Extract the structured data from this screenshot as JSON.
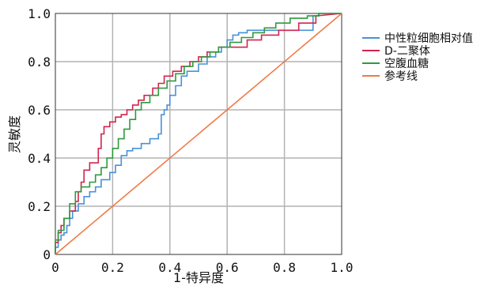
{
  "chart_data": {
    "type": "line",
    "title": "",
    "xlabel": "1-特异度",
    "ylabel": "灵敏度",
    "xlim": [
      0,
      1
    ],
    "ylim": [
      0,
      1
    ],
    "xticks": [
      "0",
      "0.2",
      "0.4",
      "0.6",
      "0.8",
      "1.0"
    ],
    "yticks": [
      "0",
      "0.2",
      "0.4",
      "0.6",
      "0.8",
      "1.0"
    ],
    "grid": true,
    "legend_position": "right",
    "series": [
      {
        "name": "中性粒细胞相对值",
        "color": "#4a90d9",
        "x": [
          0,
          0,
          0.01,
          0.01,
          0.02,
          0.02,
          0.03,
          0.03,
          0.04,
          0.04,
          0.05,
          0.05,
          0.06,
          0.06,
          0.08,
          0.08,
          0.1,
          0.1,
          0.12,
          0.12,
          0.14,
          0.14,
          0.16,
          0.16,
          0.19,
          0.19,
          0.21,
          0.21,
          0.23,
          0.23,
          0.25,
          0.25,
          0.27,
          0.27,
          0.3,
          0.3,
          0.33,
          0.33,
          0.36,
          0.36,
          0.37,
          0.37,
          0.38,
          0.38,
          0.39,
          0.39,
          0.4,
          0.4,
          0.42,
          0.42,
          0.44,
          0.44,
          0.46,
          0.46,
          0.5,
          0.5,
          0.53,
          0.53,
          0.56,
          0.56,
          0.58,
          0.58,
          0.6,
          0.6,
          0.62,
          0.62,
          0.64,
          0.64,
          0.67,
          0.67,
          0.7,
          0.7,
          0.74,
          0.74,
          0.8,
          0.8,
          0.9,
          0.9,
          0.92,
          0.92,
          0.95,
          0.95,
          1.0
        ],
        "y": [
          0,
          0.03,
          0.03,
          0.06,
          0.06,
          0.08,
          0.08,
          0.09,
          0.09,
          0.12,
          0.12,
          0.15,
          0.15,
          0.18,
          0.18,
          0.21,
          0.21,
          0.24,
          0.24,
          0.26,
          0.26,
          0.28,
          0.28,
          0.31,
          0.31,
          0.34,
          0.34,
          0.37,
          0.37,
          0.41,
          0.41,
          0.43,
          0.43,
          0.44,
          0.44,
          0.46,
          0.46,
          0.48,
          0.48,
          0.5,
          0.5,
          0.58,
          0.58,
          0.6,
          0.6,
          0.62,
          0.62,
          0.66,
          0.66,
          0.7,
          0.7,
          0.74,
          0.74,
          0.76,
          0.76,
          0.79,
          0.79,
          0.82,
          0.82,
          0.84,
          0.84,
          0.86,
          0.86,
          0.89,
          0.89,
          0.91,
          0.91,
          0.92,
          0.92,
          0.93,
          0.93,
          0.93,
          0.93,
          0.93,
          0.93,
          0.93,
          0.93,
          0.99,
          0.99,
          1.0,
          1.0,
          1.0,
          1.0
        ]
      },
      {
        "name": "D-二聚体",
        "color": "#d0244f",
        "x": [
          0,
          0,
          0.01,
          0.01,
          0.02,
          0.02,
          0.03,
          0.03,
          0.05,
          0.05,
          0.07,
          0.07,
          0.08,
          0.08,
          0.09,
          0.09,
          0.1,
          0.1,
          0.12,
          0.12,
          0.15,
          0.15,
          0.16,
          0.16,
          0.17,
          0.17,
          0.19,
          0.19,
          0.21,
          0.21,
          0.23,
          0.23,
          0.25,
          0.25,
          0.27,
          0.27,
          0.29,
          0.29,
          0.31,
          0.31,
          0.34,
          0.34,
          0.36,
          0.36,
          0.38,
          0.38,
          0.41,
          0.41,
          0.44,
          0.44,
          0.47,
          0.47,
          0.5,
          0.5,
          0.53,
          0.53,
          0.57,
          0.57,
          0.63,
          0.63,
          0.67,
          0.67,
          0.72,
          0.72,
          0.78,
          0.78,
          0.85,
          0.85,
          0.91,
          0.91,
          1.0
        ],
        "y": [
          0,
          0.05,
          0.05,
          0.09,
          0.09,
          0.12,
          0.12,
          0.15,
          0.15,
          0.18,
          0.18,
          0.22,
          0.22,
          0.26,
          0.26,
          0.3,
          0.3,
          0.35,
          0.35,
          0.38,
          0.38,
          0.44,
          0.44,
          0.5,
          0.5,
          0.53,
          0.53,
          0.55,
          0.55,
          0.57,
          0.57,
          0.58,
          0.58,
          0.6,
          0.6,
          0.62,
          0.62,
          0.64,
          0.64,
          0.66,
          0.66,
          0.69,
          0.69,
          0.71,
          0.71,
          0.74,
          0.74,
          0.76,
          0.76,
          0.78,
          0.78,
          0.8,
          0.8,
          0.82,
          0.82,
          0.84,
          0.84,
          0.86,
          0.86,
          0.86,
          0.86,
          0.89,
          0.89,
          0.91,
          0.91,
          0.93,
          0.93,
          0.96,
          0.96,
          0.99,
          1.0
        ]
      },
      {
        "name": "空腹血糖",
        "color": "#2e9a3c",
        "x": [
          0,
          0,
          0.01,
          0.01,
          0.03,
          0.03,
          0.05,
          0.05,
          0.07,
          0.07,
          0.09,
          0.09,
          0.12,
          0.12,
          0.14,
          0.14,
          0.16,
          0.16,
          0.18,
          0.18,
          0.2,
          0.2,
          0.22,
          0.22,
          0.24,
          0.24,
          0.26,
          0.26,
          0.28,
          0.28,
          0.3,
          0.3,
          0.33,
          0.33,
          0.36,
          0.36,
          0.39,
          0.39,
          0.42,
          0.42,
          0.45,
          0.45,
          0.48,
          0.48,
          0.51,
          0.51,
          0.54,
          0.54,
          0.57,
          0.57,
          0.61,
          0.61,
          0.65,
          0.65,
          0.69,
          0.69,
          0.73,
          0.73,
          0.77,
          0.77,
          0.82,
          0.82,
          0.88,
          0.88,
          0.92,
          0.92,
          1.0
        ],
        "y": [
          0,
          0.06,
          0.06,
          0.1,
          0.1,
          0.15,
          0.15,
          0.21,
          0.21,
          0.26,
          0.26,
          0.28,
          0.28,
          0.3,
          0.3,
          0.33,
          0.33,
          0.36,
          0.36,
          0.4,
          0.4,
          0.44,
          0.44,
          0.48,
          0.48,
          0.52,
          0.52,
          0.56,
          0.56,
          0.6,
          0.6,
          0.63,
          0.63,
          0.66,
          0.66,
          0.69,
          0.69,
          0.72,
          0.72,
          0.75,
          0.75,
          0.78,
          0.78,
          0.8,
          0.8,
          0.82,
          0.82,
          0.84,
          0.84,
          0.86,
          0.86,
          0.88,
          0.88,
          0.9,
          0.9,
          0.92,
          0.92,
          0.94,
          0.94,
          0.96,
          0.96,
          0.98,
          0.98,
          0.99,
          0.99,
          1.0,
          1.0
        ]
      },
      {
        "name": "参考线",
        "color": "#f07a45",
        "x": [
          0,
          1
        ],
        "y": [
          0,
          1
        ]
      }
    ]
  }
}
